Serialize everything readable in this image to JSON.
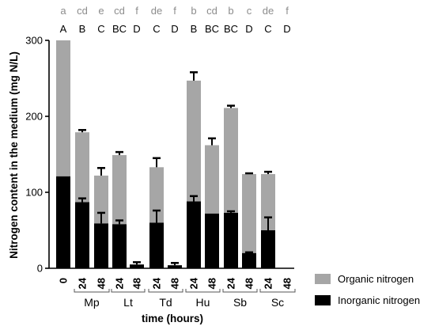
{
  "chart_data": {
    "type": "bar",
    "stacked": true,
    "ylabel": "Nitrogen content in the medium (mg N/L)",
    "xlabel": "time (hours)",
    "ylim": [
      0,
      300
    ],
    "yticks": [
      0,
      100,
      200,
      300
    ],
    "categories": [
      "0",
      "24",
      "48",
      "24",
      "48",
      "24",
      "48",
      "24",
      "48",
      "24",
      "48",
      "24",
      "48"
    ],
    "groups": [
      {
        "label": "Mp",
        "span": [
          1,
          2
        ]
      },
      {
        "label": "Lt",
        "span": [
          3,
          4
        ]
      },
      {
        "label": "Td",
        "span": [
          5,
          6
        ]
      },
      {
        "label": "Hu",
        "span": [
          7,
          8
        ]
      },
      {
        "label": "Sb",
        "span": [
          9,
          10
        ]
      },
      {
        "label": "Sc",
        "span": [
          11,
          12
        ]
      }
    ],
    "significance_lower": [
      "a",
      "cd",
      "e",
      "cd",
      "f",
      "de",
      "f",
      "b",
      "cd",
      "b",
      "c",
      "de",
      "f"
    ],
    "significance_upper": [
      "A",
      "B",
      "C",
      "BC",
      "D",
      "C",
      "D",
      "B",
      "BC",
      "BC",
      "D",
      "C",
      "D"
    ],
    "series": [
      {
        "name": "Inorganic nitrogen",
        "color": "#000000",
        "values": [
          121,
          87,
          59,
          58,
          5,
          60,
          4,
          88,
          72,
          73,
          20,
          50,
          0
        ],
        "error": [
          0,
          5,
          14,
          5,
          3,
          16,
          3,
          7,
          0,
          2,
          1,
          17,
          0
        ]
      },
      {
        "name": "Organic nitrogen",
        "color": "#a6a6a6",
        "totals": [
          300,
          179,
          122,
          149,
          5,
          133,
          4,
          247,
          162,
          211,
          124,
          124,
          0
        ],
        "error": [
          0,
          3,
          10,
          4,
          0,
          12,
          0,
          11,
          9,
          3,
          1,
          3,
          0
        ]
      }
    ],
    "legend_position": "bottom-right"
  }
}
